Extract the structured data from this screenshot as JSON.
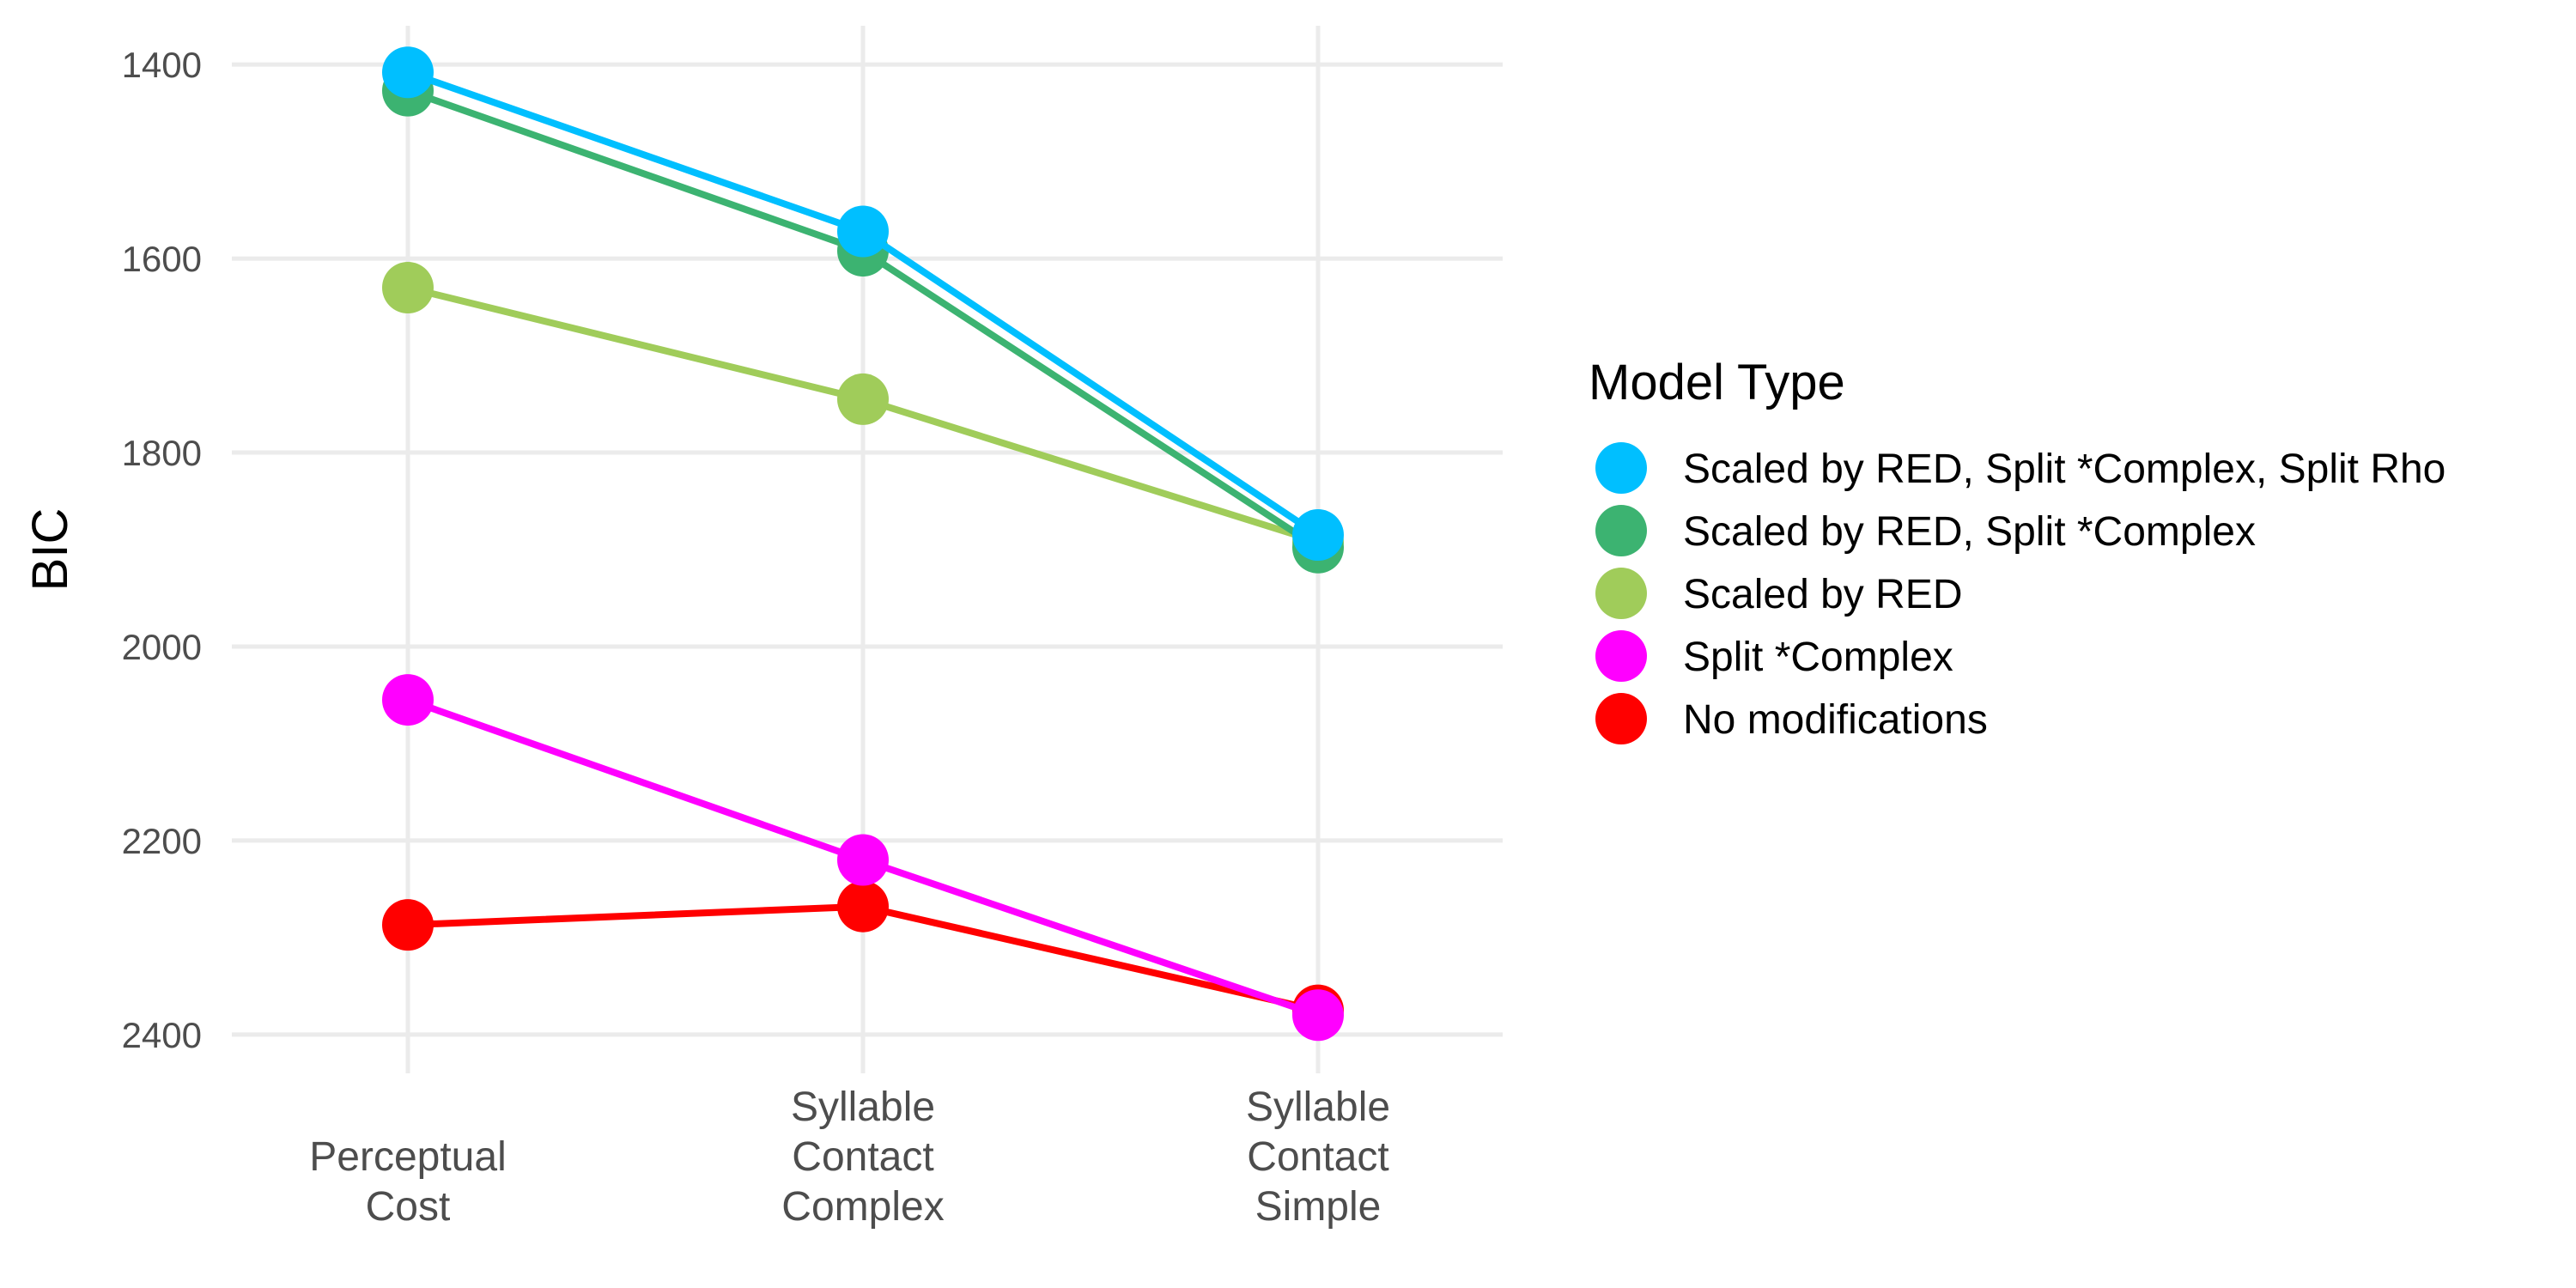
{
  "chart_data": {
    "type": "line",
    "title": "",
    "xlabel": "",
    "ylabel": "BIC",
    "y_reversed": true,
    "ylim": [
      2440,
      1360
    ],
    "yticks": [
      1400,
      1600,
      1800,
      2000,
      2200,
      2400
    ],
    "categories": [
      [
        "Perceptual",
        "Cost"
      ],
      [
        "Syllable",
        "Contact",
        "Complex"
      ],
      [
        "Syllable",
        "Contact",
        "Simple"
      ]
    ],
    "grid": true,
    "legend": {
      "title": "Model Type",
      "placement": "right"
    },
    "series": [
      {
        "name": "No modifications",
        "color": "#ff0000",
        "values": [
          2287,
          2268,
          2375
        ]
      },
      {
        "name": "Split *Complex",
        "color": "#ff00ff",
        "values": [
          2055,
          2220,
          2380
        ]
      },
      {
        "name": "Scaled by RED",
        "color": "#a0cc5a",
        "values": [
          1630,
          1745,
          1892
        ]
      },
      {
        "name": "Scaled by RED, Split *Complex",
        "color": "#3cb371",
        "values": [
          1427,
          1592,
          1898
        ]
      },
      {
        "name": "Scaled by RED, Split *Complex, Split Rho",
        "color": "#00bfff",
        "values": [
          1408,
          1572,
          1885
        ]
      }
    ],
    "legend_order": [
      "Scaled by RED, Split *Complex, Split Rho",
      "Scaled by RED, Split *Complex",
      "Scaled by RED",
      "Split *Complex",
      "No modifications"
    ]
  }
}
